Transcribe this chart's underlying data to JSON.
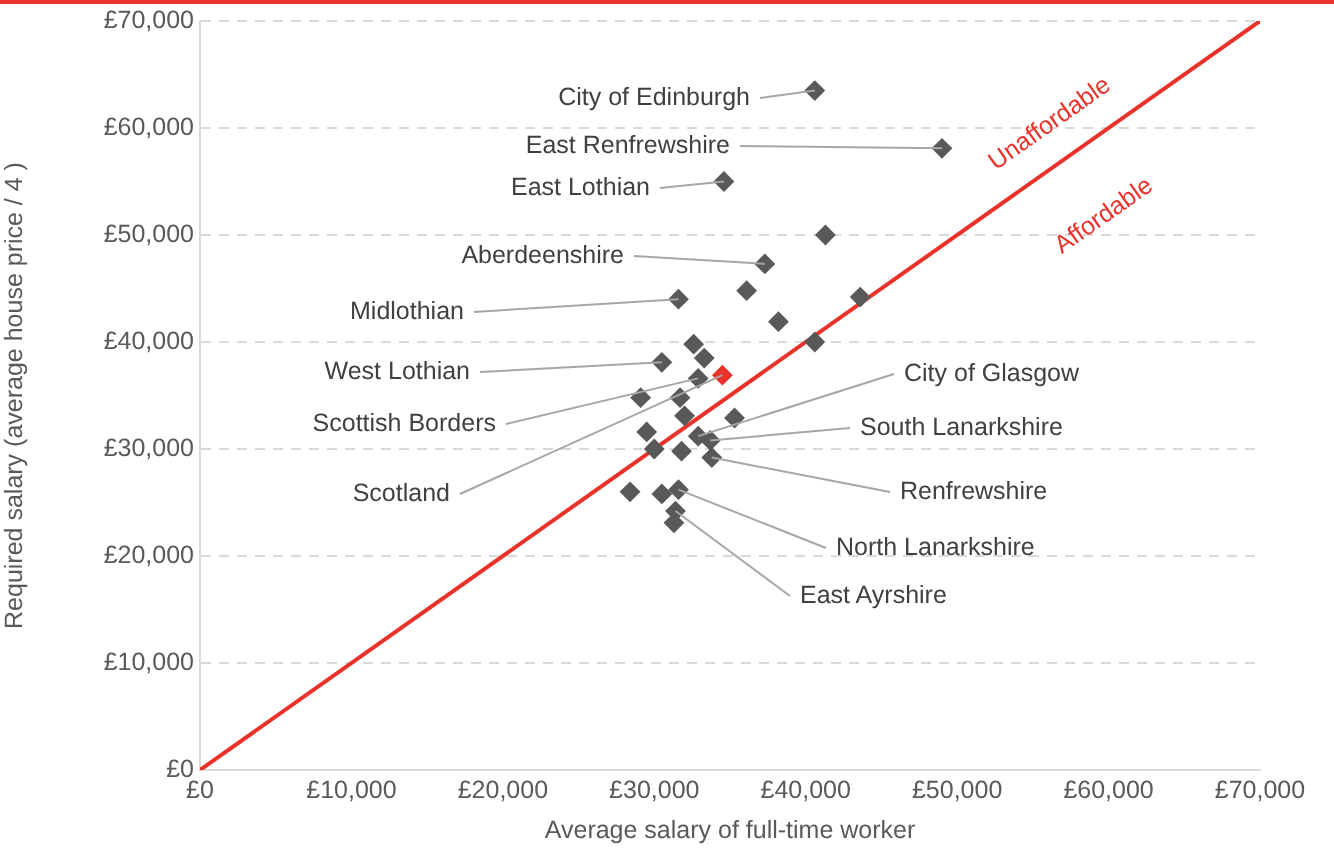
{
  "chart_data": {
    "type": "scatter",
    "xlabel": "Average salary of full-time worker",
    "ylabel": "Required salary (average house price / 4 )",
    "xlim": [
      0,
      70000
    ],
    "xticks": [
      {
        "value": 0,
        "label": "£0"
      },
      {
        "value": 10000,
        "label": "£10,000"
      },
      {
        "value": 20000,
        "label": "£20,000"
      },
      {
        "value": 30000,
        "label": "£30,000"
      },
      {
        "value": 40000,
        "label": "£40,000"
      },
      {
        "value": 50000,
        "label": "£50,000"
      },
      {
        "value": 60000,
        "label": "£60,000"
      },
      {
        "value": 70000,
        "label": "£70,000"
      }
    ],
    "ylim": [
      0,
      70000
    ],
    "yticks": [
      {
        "value": 0,
        "label": "£0"
      },
      {
        "value": 10000,
        "label": "£10,000"
      },
      {
        "value": 20000,
        "label": "£20,000"
      },
      {
        "value": 30000,
        "label": "£30,000"
      },
      {
        "value": 40000,
        "label": "£40,000"
      },
      {
        "value": 50000,
        "label": "£50,000"
      },
      {
        "value": 60000,
        "label": "£60,000"
      },
      {
        "value": 70000,
        "label": "£70,000"
      }
    ],
    "grid": "y",
    "legend": false,
    "marker": "diamond",
    "series": [
      {
        "color": "#595959",
        "x": [
          40600,
          49000,
          34600,
          41300,
          37300,
          36100,
          43600,
          31600,
          38200,
          40600,
          32600,
          30500,
          33300,
          34500,
          32900,
          29100,
          31700,
          32000,
          35300,
          29500,
          32900,
          33700,
          30000,
          31800,
          33800,
          28400,
          30500,
          31600,
          31400,
          31300
        ],
        "values": [
          63500,
          58100,
          55000,
          50000,
          47300,
          44800,
          44200,
          44000,
          41900,
          40000,
          39800,
          38100,
          38500,
          36900,
          36600,
          34800,
          34800,
          33100,
          32900,
          31600,
          31200,
          30800,
          30000,
          29800,
          29200,
          26000,
          25800,
          26200,
          24200,
          23100
        ],
        "colors": [
          null,
          null,
          null,
          null,
          null,
          null,
          null,
          null,
          null,
          null,
          null,
          null,
          null,
          "#e8322a",
          null,
          null,
          null,
          null,
          null,
          null,
          null,
          null,
          null,
          null,
          null,
          null,
          null,
          null,
          null,
          null
        ]
      },
      {
        "type": "line",
        "color": "#e8322a",
        "x": [
          0,
          70000
        ],
        "values": [
          0,
          70000
        ],
        "marker": "none"
      }
    ],
    "annotations": [
      {
        "text": "City of Edinburgh",
        "x": 40600,
        "y": 63500
      },
      {
        "text": "East Renfrewshire",
        "x": 49000,
        "y": 58100
      },
      {
        "text": "East Lothian",
        "x": 34600,
        "y": 55000
      },
      {
        "text": "Aberdeenshire",
        "x": 37300,
        "y": 47300
      },
      {
        "text": "Midlothian",
        "x": 31600,
        "y": 44000
      },
      {
        "text": "West Lothian",
        "x": 30500,
        "y": 38100
      },
      {
        "text": "Scottish Borders",
        "x": 32900,
        "y": 36600
      },
      {
        "text": "Scotland",
        "x": 34500,
        "y": 36900
      },
      {
        "text": "City of Glasgow",
        "x": 32900,
        "y": 31200
      },
      {
        "text": "South Lanarkshire",
        "x": 33700,
        "y": 30800
      },
      {
        "text": "Renfrewshire",
        "x": 33800,
        "y": 29200
      },
      {
        "text": "North Lanarkshire",
        "x": 31600,
        "y": 26200
      },
      {
        "text": "East Ayrshire",
        "x": 31400,
        "y": 24200
      },
      "Unaffordable",
      "Affordable"
    ]
  }
}
